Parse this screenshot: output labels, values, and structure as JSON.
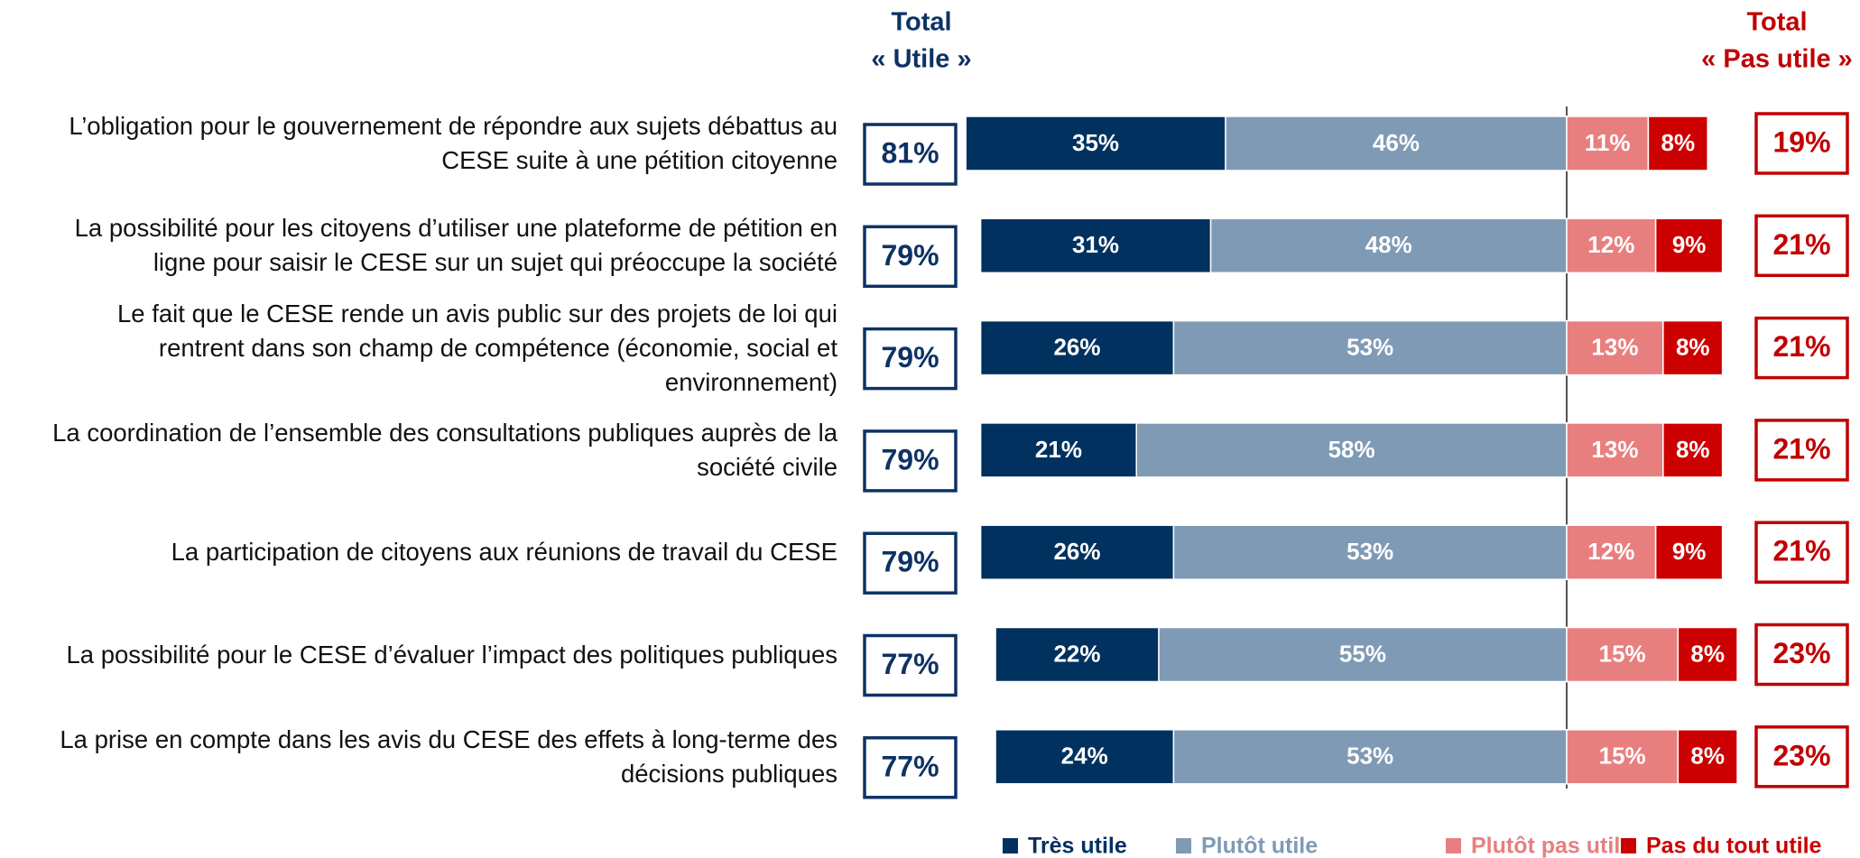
{
  "chart_data": {
    "type": "diverging_bar",
    "categories": [
      "L’obligation pour le gouvernement de répondre aux sujets débattus au\nCESE suite à une pétition citoyenne",
      "La possibilité pour les citoyens d’utiliser une plateforme de pétition en\nligne pour saisir le CESE sur un sujet qui préoccupe la société",
      "Le fait que le CESE rende un avis public sur des projets de loi qui\nrentrent dans son champ de compétence (économie, social et\nenvironnement)",
      "La coordination de l’ensemble des consultations publiques auprès de la\nsociété civile",
      "La participation de citoyens aux réunions de travail du CESE",
      "La possibilité pour le CESE d’évaluer l’impact des politiques publiques",
      "La prise en compte dans les avis du CESE des effets à long-terme des\ndécisions publiques"
    ],
    "series": [
      {
        "name": "Très utile",
        "color": "#00315f",
        "side": "left",
        "values": [
          35,
          31,
          26,
          21,
          26,
          22,
          24
        ],
        "value_labels": [
          "35%",
          "31%",
          "26%",
          "21%",
          "26%",
          "22%",
          "24%"
        ]
      },
      {
        "name": "Plutôt utile",
        "color": "#7f9ab4",
        "side": "left",
        "values": [
          46,
          48,
          53,
          58,
          53,
          55,
          53
        ],
        "value_labels": [
          "46%",
          "48%",
          "53%",
          "58%",
          "53%",
          "55%",
          "53%"
        ]
      },
      {
        "name": "Plutôt pas utile",
        "color": "#e87f7f",
        "side": "right",
        "values": [
          11,
          12,
          13,
          13,
          12,
          15,
          15
        ],
        "value_labels": [
          "11%",
          "12%",
          "13%",
          "13%",
          "12%",
          "15%",
          "15%"
        ]
      },
      {
        "name": "Pas du tout utile",
        "color": "#cc0000",
        "side": "right",
        "values": [
          8,
          9,
          8,
          8,
          9,
          8,
          8
        ],
        "value_labels": [
          "8%",
          "9%",
          "8%",
          "8%",
          "9%",
          "8%",
          "8%"
        ]
      }
    ],
    "total_useful": {
      "title": [
        "Total",
        "« Utile »"
      ],
      "color": "#0d3264",
      "values": [
        81,
        79,
        79,
        79,
        79,
        77,
        77
      ],
      "value_labels": [
        "81%",
        "79%",
        "79%",
        "79%",
        "79%",
        "77%",
        "77%"
      ]
    },
    "total_not_useful": {
      "title": [
        "Total",
        "« Pas utile »"
      ],
      "color": "#c00000",
      "values": [
        19,
        21,
        21,
        21,
        21,
        23,
        23
      ],
      "value_labels": [
        "19%",
        "21%",
        "21%",
        "21%",
        "21%",
        "23%",
        "23%"
      ]
    }
  }
}
